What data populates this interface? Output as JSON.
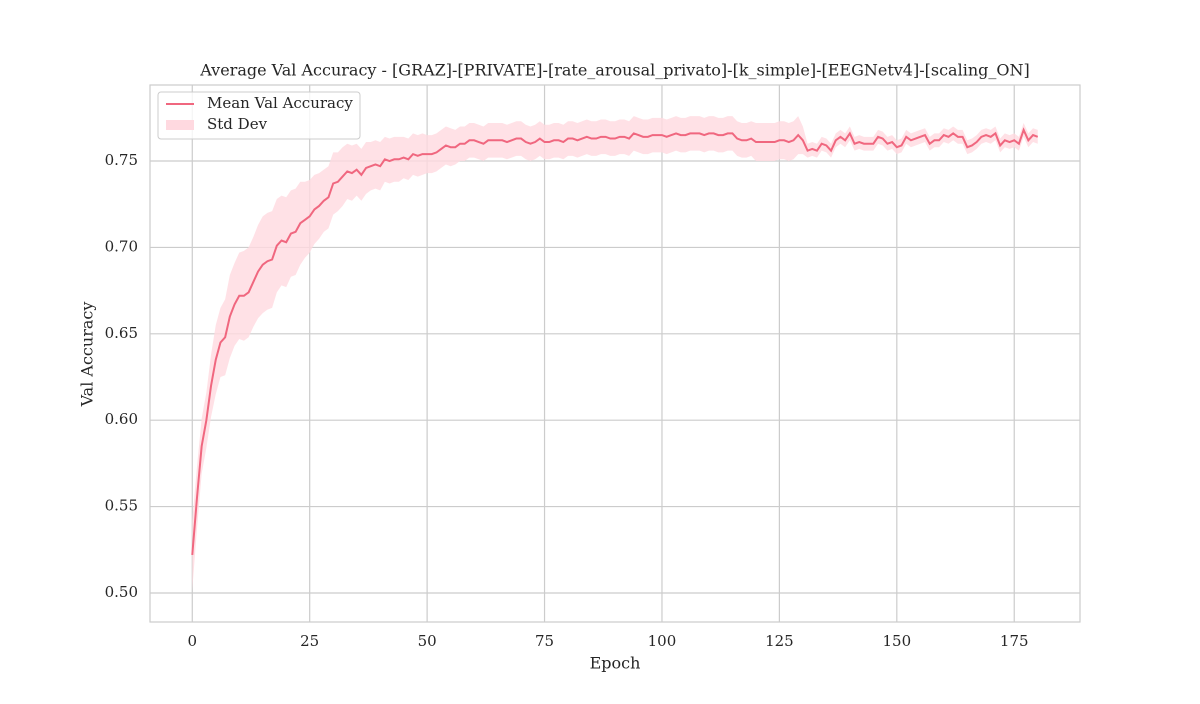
{
  "chart_data": {
    "type": "line",
    "title": "Average Val Accuracy - [GRAZ]-[PRIVATE]-[rate_arousal_privato]-[k_simple]-[EEGNetv4]-[scaling_ON]",
    "x_label": "Epoch",
    "y_label": "Val Accuracy",
    "x": [
      0,
      1,
      2,
      3,
      4,
      5,
      6,
      7,
      8,
      9,
      10,
      11,
      12,
      13,
      14,
      15,
      16,
      17,
      18,
      19,
      20,
      21,
      22,
      23,
      24,
      25,
      26,
      27,
      28,
      29,
      30,
      31,
      32,
      33,
      34,
      35,
      36,
      37,
      38,
      39,
      40,
      41,
      42,
      43,
      44,
      45,
      46,
      47,
      48,
      49,
      50,
      51,
      52,
      53,
      54,
      55,
      56,
      57,
      58,
      59,
      60,
      61,
      62,
      63,
      64,
      65,
      66,
      67,
      68,
      69,
      70,
      71,
      72,
      73,
      74,
      75,
      76,
      77,
      78,
      79,
      80,
      81,
      82,
      83,
      84,
      85,
      86,
      87,
      88,
      89,
      90,
      91,
      92,
      93,
      94,
      95,
      96,
      97,
      98,
      99,
      100,
      101,
      102,
      103,
      104,
      105,
      106,
      107,
      108,
      109,
      110,
      111,
      112,
      113,
      114,
      115,
      116,
      117,
      118,
      119,
      120,
      121,
      122,
      123,
      124,
      125,
      126,
      127,
      128,
      129,
      130,
      131,
      132,
      133,
      134,
      135,
      136,
      137,
      138,
      139,
      140,
      141,
      142,
      143,
      144,
      145,
      146,
      147,
      148,
      149,
      150,
      151,
      152,
      153,
      154,
      155,
      156,
      157,
      158,
      159,
      160,
      161,
      162,
      163,
      164,
      165,
      166,
      167,
      168,
      169,
      170,
      171,
      172,
      173,
      174,
      175,
      176,
      177,
      178,
      179,
      180
    ],
    "series": [
      {
        "name": "Mean Val Accuracy",
        "color": "#f0677f",
        "values": [
          0.522,
          0.555,
          0.585,
          0.6,
          0.62,
          0.635,
          0.645,
          0.648,
          0.66,
          0.667,
          0.672,
          0.672,
          0.674,
          0.68,
          0.686,
          0.69,
          0.692,
          0.693,
          0.701,
          0.704,
          0.703,
          0.708,
          0.709,
          0.714,
          0.716,
          0.718,
          0.722,
          0.724,
          0.727,
          0.729,
          0.737,
          0.738,
          0.741,
          0.744,
          0.743,
          0.745,
          0.742,
          0.746,
          0.747,
          0.748,
          0.747,
          0.751,
          0.75,
          0.751,
          0.751,
          0.752,
          0.751,
          0.754,
          0.753,
          0.754,
          0.754,
          0.754,
          0.755,
          0.757,
          0.759,
          0.758,
          0.758,
          0.76,
          0.76,
          0.762,
          0.762,
          0.761,
          0.76,
          0.762,
          0.762,
          0.762,
          0.762,
          0.761,
          0.762,
          0.763,
          0.763,
          0.761,
          0.76,
          0.761,
          0.763,
          0.761,
          0.761,
          0.762,
          0.762,
          0.761,
          0.763,
          0.763,
          0.762,
          0.763,
          0.764,
          0.763,
          0.763,
          0.764,
          0.764,
          0.763,
          0.763,
          0.764,
          0.764,
          0.763,
          0.766,
          0.765,
          0.764,
          0.764,
          0.765,
          0.765,
          0.765,
          0.764,
          0.765,
          0.766,
          0.765,
          0.765,
          0.766,
          0.766,
          0.766,
          0.765,
          0.766,
          0.766,
          0.765,
          0.765,
          0.766,
          0.766,
          0.763,
          0.762,
          0.762,
          0.763,
          0.761,
          0.761,
          0.761,
          0.761,
          0.761,
          0.762,
          0.762,
          0.761,
          0.762,
          0.765,
          0.762,
          0.756,
          0.757,
          0.756,
          0.76,
          0.759,
          0.756,
          0.762,
          0.764,
          0.762,
          0.766,
          0.76,
          0.761,
          0.76,
          0.76,
          0.76,
          0.764,
          0.763,
          0.76,
          0.761,
          0.758,
          0.759,
          0.764,
          0.762,
          0.763,
          0.764,
          0.765,
          0.76,
          0.762,
          0.762,
          0.765,
          0.764,
          0.766,
          0.764,
          0.764,
          0.758,
          0.759,
          0.761,
          0.764,
          0.765,
          0.764,
          0.766,
          0.759,
          0.762,
          0.761,
          0.762,
          0.76,
          0.768,
          0.762,
          0.765,
          0.764
        ]
      },
      {
        "name": "Std Dev",
        "type": "band",
        "color": "#ffd9e0",
        "values": [
          0.02,
          0.018,
          0.016,
          0.016,
          0.018,
          0.02,
          0.02,
          0.022,
          0.024,
          0.024,
          0.025,
          0.026,
          0.026,
          0.026,
          0.027,
          0.028,
          0.028,
          0.028,
          0.027,
          0.026,
          0.026,
          0.025,
          0.025,
          0.024,
          0.022,
          0.021,
          0.02,
          0.019,
          0.018,
          0.018,
          0.018,
          0.017,
          0.017,
          0.016,
          0.016,
          0.015,
          0.015,
          0.015,
          0.014,
          0.014,
          0.014,
          0.013,
          0.013,
          0.013,
          0.013,
          0.012,
          0.012,
          0.012,
          0.012,
          0.012,
          0.011,
          0.011,
          0.011,
          0.011,
          0.011,
          0.011,
          0.01,
          0.01,
          0.01,
          0.01,
          0.01,
          0.01,
          0.01,
          0.01,
          0.01,
          0.01,
          0.01,
          0.01,
          0.01,
          0.01,
          0.01,
          0.01,
          0.01,
          0.01,
          0.01,
          0.01,
          0.01,
          0.01,
          0.01,
          0.01,
          0.01,
          0.01,
          0.01,
          0.01,
          0.01,
          0.01,
          0.01,
          0.01,
          0.01,
          0.01,
          0.01,
          0.01,
          0.01,
          0.01,
          0.01,
          0.01,
          0.01,
          0.01,
          0.01,
          0.01,
          0.01,
          0.01,
          0.01,
          0.01,
          0.01,
          0.01,
          0.01,
          0.01,
          0.01,
          0.01,
          0.01,
          0.01,
          0.01,
          0.01,
          0.01,
          0.01,
          0.01,
          0.01,
          0.01,
          0.01,
          0.011,
          0.011,
          0.011,
          0.011,
          0.011,
          0.011,
          0.011,
          0.011,
          0.011,
          0.011,
          0.008,
          0.004,
          0.004,
          0.004,
          0.004,
          0.004,
          0.004,
          0.004,
          0.004,
          0.004,
          0.004,
          0.004,
          0.004,
          0.004,
          0.004,
          0.004,
          0.004,
          0.004,
          0.004,
          0.004,
          0.004,
          0.004,
          0.004,
          0.004,
          0.004,
          0.004,
          0.004,
          0.004,
          0.004,
          0.004,
          0.004,
          0.004,
          0.004,
          0.004,
          0.004,
          0.004,
          0.004,
          0.004,
          0.004,
          0.004,
          0.004,
          0.004,
          0.004,
          0.004,
          0.004,
          0.004,
          0.004,
          0.004,
          0.004,
          0.004,
          0.004
        ]
      }
    ],
    "xlim": [
      -9,
      189
    ],
    "xticks": [
      0,
      25,
      50,
      75,
      100,
      125,
      150,
      175
    ],
    "ylim": [
      0.4832,
      0.794
    ],
    "yticks": [
      {
        "value": 0.5,
        "label": "0.50"
      },
      0.55,
      {
        "value": 0.6,
        "label": "0.60"
      },
      0.65,
      {
        "value": 0.7,
        "label": "0.70"
      },
      0.75
    ],
    "grid": true,
    "legend": "upper left"
  }
}
